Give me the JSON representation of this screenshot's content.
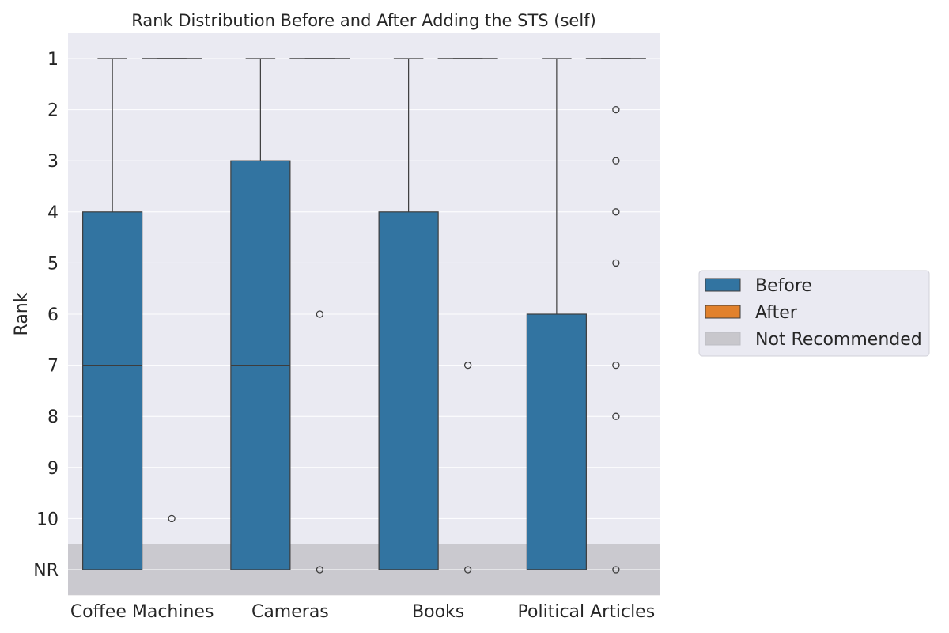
{
  "chart_data": {
    "type": "box",
    "title": "Rank Distribution Before and After Adding the STS (self)",
    "xlabel": "",
    "ylabel": "Rank",
    "y_tick_labels": [
      "1",
      "2",
      "3",
      "4",
      "5",
      "6",
      "7",
      "8",
      "9",
      "10",
      "NR"
    ],
    "y_values": [
      1,
      2,
      3,
      4,
      5,
      6,
      7,
      8,
      9,
      10,
      11
    ],
    "y_axis_inverted": true,
    "ylim": [
      0.5,
      11.5
    ],
    "grid": true,
    "legend_position": "right",
    "categories": [
      "Coffee Machines",
      "Cameras",
      "Books",
      "Political Articles"
    ],
    "series": [
      {
        "name": "Before",
        "color": "#3274a1",
        "boxes": [
          {
            "whisker_low": 1,
            "q1": 4,
            "median": 7,
            "q3": 11,
            "whisker_high": 11,
            "outliers": []
          },
          {
            "whisker_low": 1,
            "q1": 3,
            "median": 7,
            "q3": 11,
            "whisker_high": 11,
            "outliers": []
          },
          {
            "whisker_low": 1,
            "q1": 4,
            "median": 11,
            "q3": 11,
            "whisker_high": 11,
            "outliers": []
          },
          {
            "whisker_low": 1,
            "q1": 6,
            "median": 11,
            "q3": 11,
            "whisker_high": 11,
            "outliers": []
          }
        ]
      },
      {
        "name": "After",
        "color": "#e1812c",
        "boxes": [
          {
            "whisker_low": 1,
            "q1": 1,
            "median": 1,
            "q3": 1,
            "whisker_high": 1,
            "outliers": [
              10
            ]
          },
          {
            "whisker_low": 1,
            "q1": 1,
            "median": 1,
            "q3": 1,
            "whisker_high": 1,
            "outliers": [
              6,
              11
            ]
          },
          {
            "whisker_low": 1,
            "q1": 1,
            "median": 1,
            "q3": 1,
            "whisker_high": 1,
            "outliers": [
              7,
              11
            ]
          },
          {
            "whisker_low": 1,
            "q1": 1,
            "median": 1,
            "q3": 1,
            "whisker_high": 1,
            "outliers": [
              2,
              3,
              4,
              5,
              7,
              8,
              11
            ]
          }
        ]
      }
    ],
    "shaded_region": {
      "label": "Not Recommended",
      "y_from": 10.5,
      "y_to": 11.5,
      "color": "#c8c7cc"
    },
    "legend": [
      "Before",
      "After",
      "Not Recommended"
    ],
    "colors": {
      "background": "#eaeaf2",
      "grid": "#ffffff",
      "edge": "#3d3d3d"
    }
  }
}
